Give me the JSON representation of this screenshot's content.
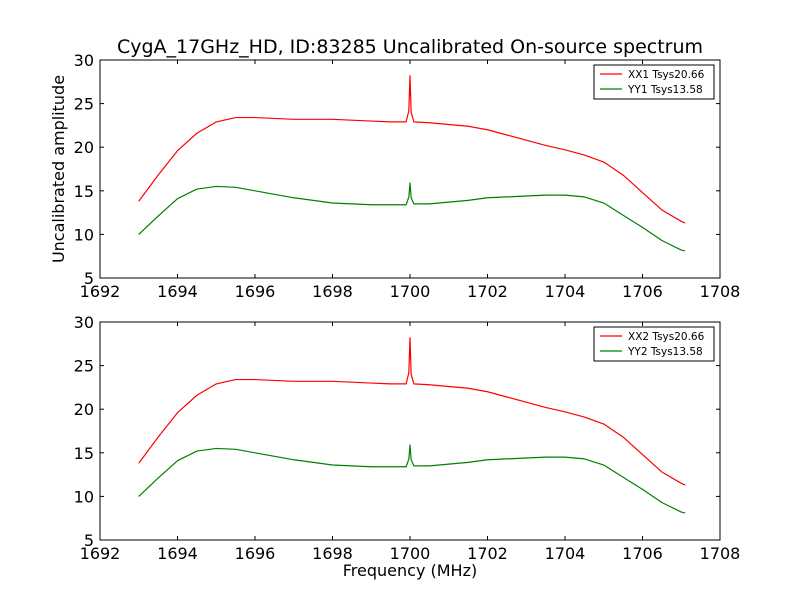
{
  "figure": {
    "title": "CygA_17GHz_HD, ID:83285 Uncalibrated On-source spectrum",
    "xlabel": "Frequency (MHz)",
    "ylabel": "Uncalibrated amplitude"
  },
  "colors": {
    "xx": "#ff0000",
    "yy": "#008000",
    "axes": "#000000",
    "background": "#ffffff"
  },
  "chart_data": [
    {
      "type": "line",
      "xlim": [
        1692,
        1708
      ],
      "ylim": [
        5,
        30
      ],
      "xticks": [
        1692,
        1694,
        1696,
        1698,
        1700,
        1702,
        1704,
        1706,
        1708
      ],
      "yticks": [
        5,
        10,
        15,
        20,
        25,
        30
      ],
      "grid": false,
      "legend_position": "top-right",
      "xlabel": "",
      "ylabel": "Uncalibrated amplitude",
      "series": [
        {
          "name": "XX1 Tsys20.66",
          "color": "#ff0000",
          "x": [
            1693.0,
            1693.5,
            1694.0,
            1694.5,
            1695.0,
            1695.5,
            1696.0,
            1696.5,
            1697.0,
            1697.5,
            1698.0,
            1698.5,
            1699.0,
            1699.5,
            1699.9,
            1699.97,
            1700.0,
            1700.03,
            1700.1,
            1700.5,
            1701.0,
            1701.5,
            1702.0,
            1702.5,
            1703.0,
            1703.5,
            1704.0,
            1704.5,
            1705.0,
            1705.5,
            1706.0,
            1706.5,
            1707.0,
            1707.1
          ],
          "y": [
            13.8,
            16.8,
            19.6,
            21.6,
            22.9,
            23.4,
            23.4,
            23.3,
            23.2,
            23.2,
            23.2,
            23.1,
            23.0,
            22.9,
            22.9,
            24.2,
            28.2,
            24.0,
            22.9,
            22.8,
            22.6,
            22.4,
            22.0,
            21.4,
            20.8,
            20.2,
            19.7,
            19.1,
            18.3,
            16.8,
            14.8,
            12.8,
            11.5,
            11.3
          ]
        },
        {
          "name": "YY1 Tsys13.58",
          "color": "#008000",
          "x": [
            1693.0,
            1693.5,
            1694.0,
            1694.5,
            1695.0,
            1695.5,
            1696.0,
            1696.5,
            1697.0,
            1697.5,
            1698.0,
            1698.5,
            1699.0,
            1699.5,
            1699.9,
            1699.97,
            1700.0,
            1700.03,
            1700.1,
            1700.5,
            1701.0,
            1701.5,
            1702.0,
            1702.5,
            1703.0,
            1703.5,
            1704.0,
            1704.5,
            1705.0,
            1705.5,
            1706.0,
            1706.5,
            1707.0,
            1707.1
          ],
          "y": [
            10.0,
            12.1,
            14.1,
            15.2,
            15.5,
            15.4,
            15.0,
            14.6,
            14.2,
            13.9,
            13.6,
            13.5,
            13.4,
            13.4,
            13.4,
            14.3,
            15.9,
            14.2,
            13.5,
            13.5,
            13.7,
            13.9,
            14.2,
            14.3,
            14.4,
            14.5,
            14.5,
            14.3,
            13.6,
            12.2,
            10.8,
            9.3,
            8.2,
            8.1
          ]
        }
      ]
    },
    {
      "type": "line",
      "xlim": [
        1692,
        1708
      ],
      "ylim": [
        5,
        30
      ],
      "xticks": [
        1692,
        1694,
        1696,
        1698,
        1700,
        1702,
        1704,
        1706,
        1708
      ],
      "yticks": [
        5,
        10,
        15,
        20,
        25,
        30
      ],
      "grid": false,
      "legend_position": "top-right",
      "xlabel": "Frequency (MHz)",
      "ylabel": "",
      "series": [
        {
          "name": "XX2 Tsys20.66",
          "color": "#ff0000",
          "x": [
            1693.0,
            1693.5,
            1694.0,
            1694.5,
            1695.0,
            1695.5,
            1696.0,
            1696.5,
            1697.0,
            1697.5,
            1698.0,
            1698.5,
            1699.0,
            1699.5,
            1699.9,
            1699.97,
            1700.0,
            1700.03,
            1700.1,
            1700.5,
            1701.0,
            1701.5,
            1702.0,
            1702.5,
            1703.0,
            1703.5,
            1704.0,
            1704.5,
            1705.0,
            1705.5,
            1706.0,
            1706.5,
            1707.0,
            1707.1
          ],
          "y": [
            13.8,
            16.8,
            19.6,
            21.6,
            22.9,
            23.4,
            23.4,
            23.3,
            23.2,
            23.2,
            23.2,
            23.1,
            23.0,
            22.9,
            22.9,
            24.2,
            28.2,
            24.0,
            22.9,
            22.8,
            22.6,
            22.4,
            22.0,
            21.4,
            20.8,
            20.2,
            19.7,
            19.1,
            18.3,
            16.8,
            14.8,
            12.8,
            11.5,
            11.3
          ]
        },
        {
          "name": "YY2 Tsys13.58",
          "color": "#008000",
          "x": [
            1693.0,
            1693.5,
            1694.0,
            1694.5,
            1695.0,
            1695.5,
            1696.0,
            1696.5,
            1697.0,
            1697.5,
            1698.0,
            1698.5,
            1699.0,
            1699.5,
            1699.9,
            1699.97,
            1700.0,
            1700.03,
            1700.1,
            1700.5,
            1701.0,
            1701.5,
            1702.0,
            1702.5,
            1703.0,
            1703.5,
            1704.0,
            1704.5,
            1705.0,
            1705.5,
            1706.0,
            1706.5,
            1707.0,
            1707.1
          ],
          "y": [
            10.0,
            12.1,
            14.1,
            15.2,
            15.5,
            15.4,
            15.0,
            14.6,
            14.2,
            13.9,
            13.6,
            13.5,
            13.4,
            13.4,
            13.4,
            14.3,
            15.9,
            14.2,
            13.5,
            13.5,
            13.7,
            13.9,
            14.2,
            14.3,
            14.4,
            14.5,
            14.5,
            14.3,
            13.6,
            12.2,
            10.8,
            9.3,
            8.2,
            8.1
          ]
        }
      ]
    }
  ]
}
